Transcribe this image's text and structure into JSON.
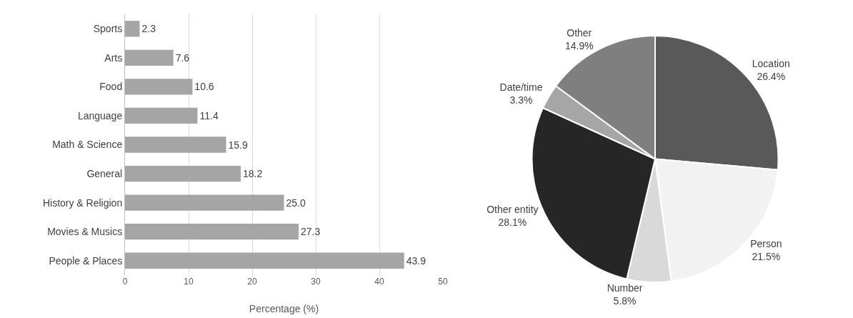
{
  "chart_data": [
    {
      "type": "bar",
      "orientation": "horizontal",
      "xlabel": "Percentage (%)",
      "categories": [
        "Sports",
        "Arts",
        "Food",
        "Language",
        "Math & Science",
        "General",
        "History & Religion",
        "Movies & Musics",
        "People & Places"
      ],
      "values": [
        2.3,
        7.6,
        10.6,
        11.4,
        15.9,
        18.2,
        25.0,
        27.3,
        43.9
      ],
      "value_labels": [
        "2.3",
        "7.6",
        "10.6",
        "11.4",
        "15.9",
        "18.2",
        "25.0",
        "27.3",
        "43.9"
      ],
      "color": "#a5a5a5",
      "xlim": [
        0,
        50
      ],
      "xticks": [
        0,
        10,
        20,
        30,
        40,
        50
      ],
      "grid": "x",
      "legend": false
    },
    {
      "type": "pie",
      "categories": [
        "Location",
        "Person",
        "Number",
        "Other entity",
        "Date/time",
        "Other"
      ],
      "values": [
        26.4,
        21.5,
        5.8,
        28.1,
        3.3,
        14.9
      ],
      "value_labels": [
        "26.4%",
        "21.5%",
        "5.8%",
        "28.1%",
        "3.3%",
        "14.9%"
      ],
      "colors": [
        "#595959",
        "#f2f2f2",
        "#d9d9d9",
        "#262626",
        "#a6a6a6",
        "#7f7f7f"
      ],
      "legend": false
    }
  ]
}
